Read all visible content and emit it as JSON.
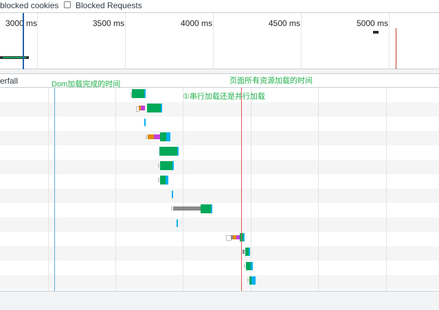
{
  "toolbar": {
    "blocked_cookies_label": "blocked cookies",
    "blocked_requests_label": "Blocked Requests"
  },
  "overview": {
    "ticks": [
      "3000 ms",
      "3500 ms",
      "4000 ms",
      "4500 ms",
      "5000 ms"
    ]
  },
  "waterfall": {
    "header_label": "erfall",
    "dom_annotation": "Dom加载完成的时间",
    "load_annotation": "页面所有资源加载的时间",
    "parallel_annotation": "①串行加载还是并行加载"
  },
  "colors": {
    "dom_line": "#5aa7e0",
    "load_line": "#d9534f",
    "annotation": "#22b14c",
    "download": "#00a859",
    "ttfb": "#00b0f0",
    "ssl": "#c040e0",
    "connect": "#e08a00",
    "stalled": "#8a8a8a"
  }
}
